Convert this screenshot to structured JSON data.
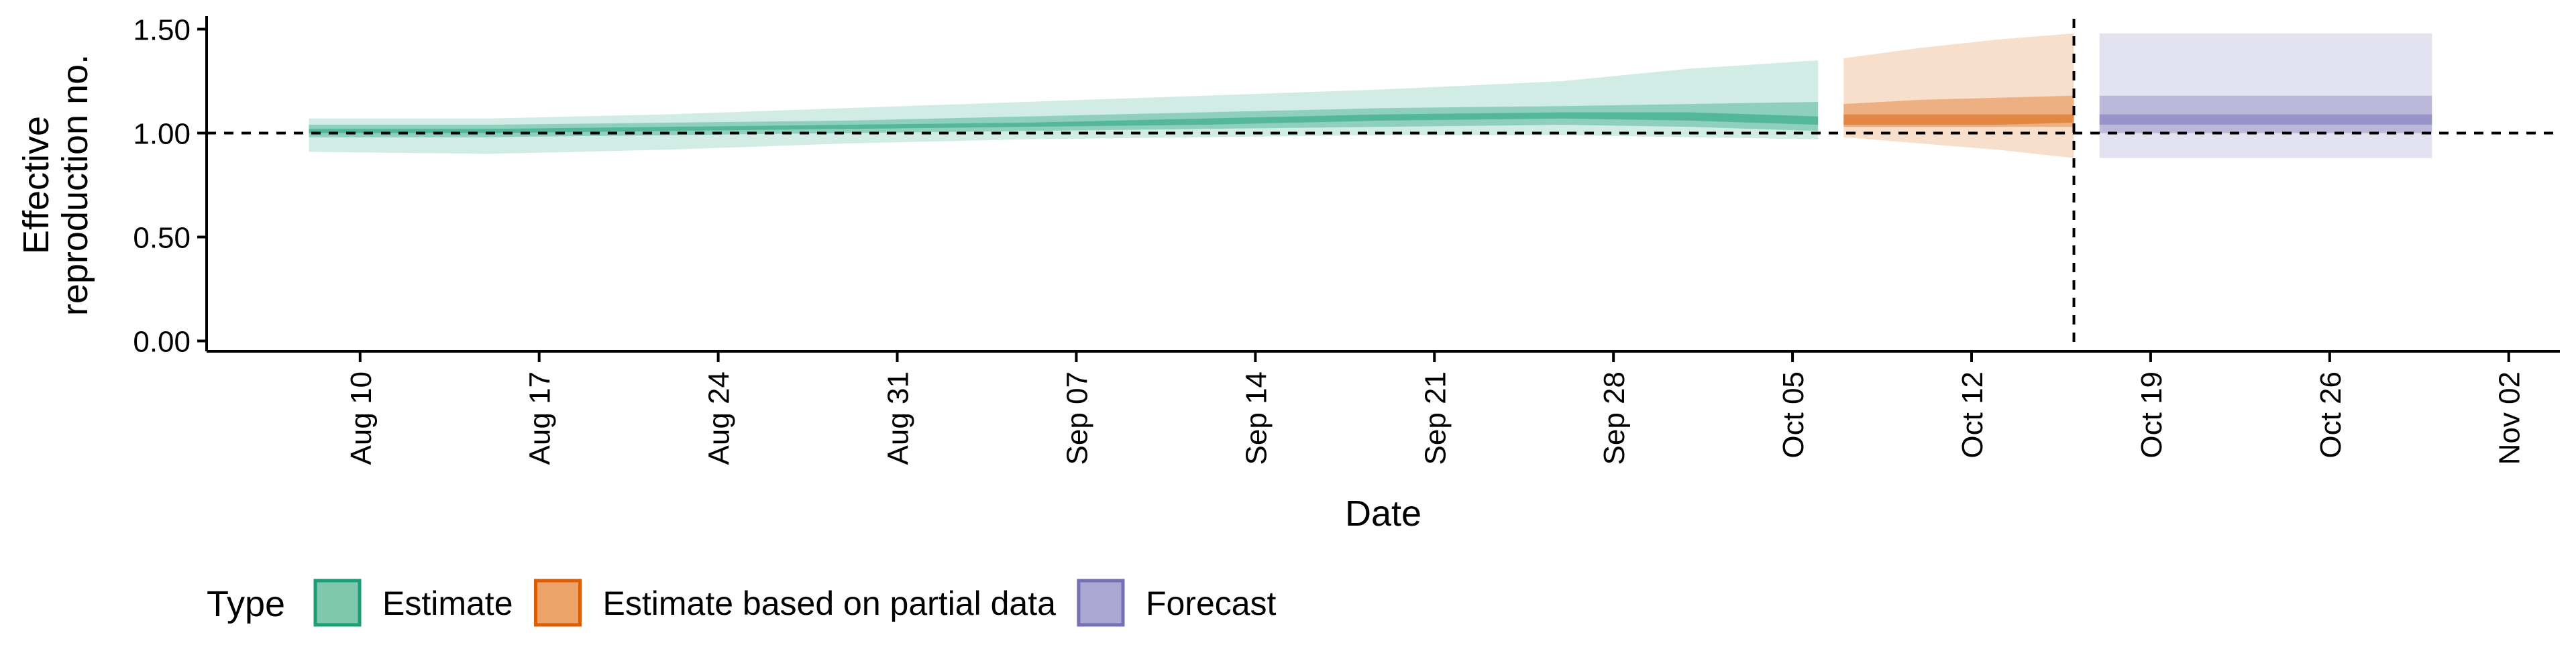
{
  "chart_data": {
    "type": "area",
    "ylabel_lines": [
      "Effective",
      "reproduction no."
    ],
    "xlabel": "Date",
    "ylim": [
      -0.05,
      1.55
    ],
    "yticks": [
      0.0,
      0.5,
      1.0,
      1.5
    ],
    "ytick_labels": [
      "0.00",
      "0.50",
      "1.00",
      "1.50"
    ],
    "xlim": [
      "2020-08-04",
      "2020-11-04"
    ],
    "xticks": [
      "2020-08-10",
      "2020-08-17",
      "2020-08-24",
      "2020-08-31",
      "2020-09-07",
      "2020-09-14",
      "2020-09-21",
      "2020-09-28",
      "2020-10-05",
      "2020-10-12",
      "2020-10-19",
      "2020-10-26",
      "2020-11-02"
    ],
    "xtick_labels": [
      "Aug 10",
      "Aug 17",
      "Aug 24",
      "Aug 31",
      "Sep 07",
      "Sep 14",
      "Sep 21",
      "Sep 28",
      "Oct 05",
      "Oct 12",
      "Oct 19",
      "Oct 26",
      "Nov 02"
    ],
    "reference_line_y": 1.0,
    "forecast_date_line": "2020-10-16",
    "legend": {
      "title": "Type",
      "position": "bottom",
      "entries": [
        {
          "label": "Estimate",
          "fill": "#7fc8ad",
          "stroke": "#1b9e77"
        },
        {
          "label": "Estimate based on partial data",
          "fill": "#eca36a",
          "stroke": "#d95f02"
        },
        {
          "label": "Forecast",
          "fill": "#aaa8d2",
          "stroke": "#7570b3"
        }
      ]
    },
    "series": [
      {
        "name": "Estimate",
        "color": "#1b9e77",
        "x": [
          "2020-08-08",
          "2020-08-15",
          "2020-08-22",
          "2020-08-29",
          "2020-09-05",
          "2020-09-12",
          "2020-09-19",
          "2020-09-26",
          "2020-10-01",
          "2020-10-06"
        ],
        "lower_90": [
          0.91,
          0.9,
          0.92,
          0.95,
          0.97,
          0.98,
          0.99,
          0.99,
          0.98,
          0.97
        ],
        "lower_50": [
          0.98,
          0.98,
          0.99,
          1.0,
          1.01,
          1.02,
          1.03,
          1.04,
          1.03,
          1.01
        ],
        "lower_20": [
          1.0,
          1.0,
          1.01,
          1.02,
          1.03,
          1.04,
          1.06,
          1.07,
          1.06,
          1.04
        ],
        "upper_20": [
          1.02,
          1.02,
          1.03,
          1.04,
          1.05,
          1.07,
          1.09,
          1.1,
          1.1,
          1.08
        ],
        "upper_50": [
          1.04,
          1.04,
          1.05,
          1.06,
          1.08,
          1.1,
          1.12,
          1.13,
          1.14,
          1.15
        ],
        "upper_90": [
          1.07,
          1.07,
          1.09,
          1.12,
          1.15,
          1.18,
          1.21,
          1.25,
          1.31,
          1.35
        ]
      },
      {
        "name": "Estimate based on partial data",
        "color": "#d95f02",
        "x": [
          "2020-10-07",
          "2020-10-10",
          "2020-10-13",
          "2020-10-16"
        ],
        "lower_90": [
          0.98,
          0.95,
          0.92,
          0.88
        ],
        "lower_50": [
          1.03,
          1.03,
          1.03,
          1.03
        ],
        "lower_20": [
          1.04,
          1.04,
          1.04,
          1.05
        ],
        "upper_20": [
          1.09,
          1.09,
          1.09,
          1.09
        ],
        "upper_50": [
          1.14,
          1.16,
          1.17,
          1.18
        ],
        "upper_90": [
          1.36,
          1.41,
          1.45,
          1.48
        ]
      },
      {
        "name": "Forecast",
        "color": "#7570b3",
        "x": [
          "2020-10-17",
          "2020-10-30"
        ],
        "lower_90": [
          0.88,
          0.88
        ],
        "lower_50": [
          1.0,
          1.0
        ],
        "lower_20": [
          1.04,
          1.04
        ],
        "upper_20": [
          1.09,
          1.09
        ],
        "upper_50": [
          1.18,
          1.18
        ],
        "upper_90": [
          1.48,
          1.48
        ]
      }
    ]
  }
}
